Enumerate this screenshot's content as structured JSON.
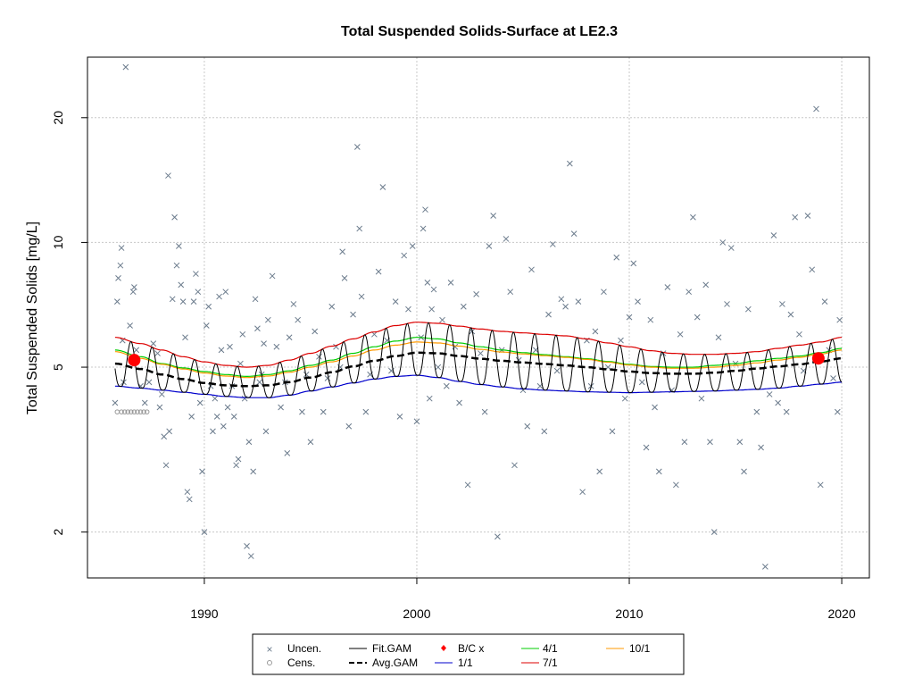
{
  "chart_data": {
    "type": "scatter",
    "title": "Total Suspended Solids-Surface at LE2.3",
    "xlabel": "",
    "ylabel": "Total Suspended Solids [mg/L]",
    "xlim": [
      1984.5,
      2021.3
    ],
    "ylim_log": [
      1.55,
      28
    ],
    "y_scale": "log",
    "xticks": [
      1990,
      2000,
      2010,
      2020
    ],
    "yticks": [
      2,
      5,
      10,
      20
    ],
    "grid": true,
    "legend": {
      "placement": "bottom-center",
      "entries": [
        {
          "label": "Uncen.",
          "kind": "x-point",
          "color": "#6b7b8c"
        },
        {
          "label": "Cens.",
          "kind": "circle-point",
          "color": "#999999"
        },
        {
          "label": "Fit.GAM",
          "kind": "line",
          "color": "#000000"
        },
        {
          "label": "Avg.GAM",
          "kind": "dashed-line",
          "color": "#000000"
        },
        {
          "label": "B/C x",
          "kind": "diamond",
          "color": "#ff0000"
        },
        {
          "label": "1/1",
          "kind": "line",
          "color": "#0000cc"
        },
        {
          "label": "4/1",
          "kind": "line",
          "color": "#00cc00"
        },
        {
          "label": "7/1",
          "kind": "line",
          "color": "#dd0000"
        },
        {
          "label": "10/1",
          "kind": "line",
          "color": "#ff9900"
        }
      ]
    },
    "uncensored_points": [
      [
        1985.8,
        4.1
      ],
      [
        1985.9,
        7.2
      ],
      [
        1985.95,
        8.2
      ],
      [
        1986.05,
        8.8
      ],
      [
        1986.1,
        9.7
      ],
      [
        1986.15,
        5.8
      ],
      [
        1986.2,
        4.6
      ],
      [
        1986.3,
        26.5
      ],
      [
        1986.5,
        6.3
      ],
      [
        1986.65,
        7.6
      ],
      [
        1986.7,
        7.8
      ],
      [
        1986.8,
        5.5
      ],
      [
        1987.0,
        4.5
      ],
      [
        1987.2,
        4.1
      ],
      [
        1987.4,
        4.6
      ],
      [
        1987.6,
        5.7
      ],
      [
        1987.8,
        5.4
      ],
      [
        1987.9,
        4.0
      ],
      [
        1988.0,
        4.3
      ],
      [
        1988.1,
        3.4
      ],
      [
        1988.2,
        2.9
      ],
      [
        1988.3,
        14.5
      ],
      [
        1988.35,
        3.5
      ],
      [
        1988.5,
        7.3
      ],
      [
        1988.6,
        11.5
      ],
      [
        1988.7,
        8.8
      ],
      [
        1988.8,
        9.8
      ],
      [
        1988.9,
        7.9
      ],
      [
        1989.0,
        7.2
      ],
      [
        1989.1,
        5.9
      ],
      [
        1989.2,
        2.5
      ],
      [
        1989.3,
        2.4
      ],
      [
        1989.4,
        3.8
      ],
      [
        1989.5,
        7.2
      ],
      [
        1989.6,
        8.4
      ],
      [
        1989.7,
        7.6
      ],
      [
        1989.8,
        4.1
      ],
      [
        1989.9,
        2.8
      ],
      [
        1990.0,
        2.0
      ],
      [
        1990.1,
        6.3
      ],
      [
        1990.2,
        7.0
      ],
      [
        1990.3,
        4.5
      ],
      [
        1990.4,
        3.5
      ],
      [
        1990.5,
        4.2
      ],
      [
        1990.6,
        3.8
      ],
      [
        1990.7,
        7.4
      ],
      [
        1990.8,
        5.5
      ],
      [
        1990.9,
        3.6
      ],
      [
        1991.0,
        7.6
      ],
      [
        1991.1,
        4.0
      ],
      [
        1991.2,
        5.6
      ],
      [
        1991.3,
        4.5
      ],
      [
        1991.4,
        3.8
      ],
      [
        1991.5,
        2.9
      ],
      [
        1991.6,
        3.0
      ],
      [
        1991.7,
        5.1
      ],
      [
        1991.8,
        6.0
      ],
      [
        1991.9,
        4.2
      ],
      [
        1992.0,
        1.85
      ],
      [
        1992.1,
        3.3
      ],
      [
        1992.2,
        1.75
      ],
      [
        1992.3,
        2.8
      ],
      [
        1992.4,
        7.3
      ],
      [
        1992.5,
        6.2
      ],
      [
        1992.6,
        4.6
      ],
      [
        1992.7,
        4.8
      ],
      [
        1992.8,
        5.7
      ],
      [
        1992.9,
        3.5
      ],
      [
        1993.0,
        6.5
      ],
      [
        1993.2,
        8.3
      ],
      [
        1993.4,
        5.6
      ],
      [
        1993.6,
        4.0
      ],
      [
        1993.8,
        4.6
      ],
      [
        1993.9,
        3.1
      ],
      [
        1994.0,
        5.9
      ],
      [
        1994.2,
        7.1
      ],
      [
        1994.4,
        6.5
      ],
      [
        1994.6,
        3.9
      ],
      [
        1994.8,
        4.8
      ],
      [
        1995.0,
        3.3
      ],
      [
        1995.2,
        6.1
      ],
      [
        1995.4,
        5.3
      ],
      [
        1995.6,
        3.9
      ],
      [
        1995.8,
        4.7
      ],
      [
        1996.0,
        7.0
      ],
      [
        1996.2,
        5.6
      ],
      [
        1996.4,
        5.0
      ],
      [
        1996.5,
        9.5
      ],
      [
        1996.6,
        8.2
      ],
      [
        1996.8,
        3.6
      ],
      [
        1997.0,
        6.7
      ],
      [
        1997.2,
        17.0
      ],
      [
        1997.3,
        10.8
      ],
      [
        1997.4,
        7.4
      ],
      [
        1997.6,
        3.9
      ],
      [
        1997.8,
        4.8
      ],
      [
        1998.0,
        6.0
      ],
      [
        1998.2,
        8.5
      ],
      [
        1998.4,
        13.6
      ],
      [
        1998.6,
        5.8
      ],
      [
        1998.8,
        4.9
      ],
      [
        1999.0,
        7.2
      ],
      [
        1999.2,
        3.8
      ],
      [
        1999.4,
        9.3
      ],
      [
        1999.6,
        6.9
      ],
      [
        1999.8,
        9.8
      ],
      [
        2000.0,
        3.7
      ],
      [
        2000.2,
        5.9
      ],
      [
        2000.3,
        10.8
      ],
      [
        2000.4,
        12.0
      ],
      [
        2000.5,
        8.0
      ],
      [
        2000.6,
        4.2
      ],
      [
        2000.7,
        6.9
      ],
      [
        2000.8,
        7.7
      ],
      [
        2001.0,
        5.0
      ],
      [
        2001.2,
        6.5
      ],
      [
        2001.4,
        4.5
      ],
      [
        2001.6,
        8.0
      ],
      [
        2001.8,
        5.6
      ],
      [
        2002.0,
        4.1
      ],
      [
        2002.2,
        7.0
      ],
      [
        2002.4,
        2.6
      ],
      [
        2002.6,
        6.1
      ],
      [
        2002.8,
        7.5
      ],
      [
        2003.0,
        5.4
      ],
      [
        2003.2,
        3.9
      ],
      [
        2003.4,
        9.8
      ],
      [
        2003.6,
        11.6
      ],
      [
        2003.8,
        1.95
      ],
      [
        2004.0,
        5.5
      ],
      [
        2004.2,
        10.2
      ],
      [
        2004.4,
        7.6
      ],
      [
        2004.6,
        2.9
      ],
      [
        2004.8,
        5.2
      ],
      [
        2005.0,
        4.4
      ],
      [
        2005.2,
        3.6
      ],
      [
        2005.4,
        8.6
      ],
      [
        2005.6,
        5.5
      ],
      [
        2005.8,
        4.5
      ],
      [
        2006.0,
        3.5
      ],
      [
        2006.2,
        6.7
      ],
      [
        2006.4,
        9.9
      ],
      [
        2006.6,
        4.9
      ],
      [
        2006.8,
        7.3
      ],
      [
        2007.0,
        7.0
      ],
      [
        2007.2,
        15.5
      ],
      [
        2007.4,
        10.5
      ],
      [
        2007.6,
        7.2
      ],
      [
        2007.8,
        2.5
      ],
      [
        2008.0,
        5.8
      ],
      [
        2008.2,
        4.5
      ],
      [
        2008.4,
        6.1
      ],
      [
        2008.6,
        2.8
      ],
      [
        2008.8,
        7.6
      ],
      [
        2009.0,
        5.0
      ],
      [
        2009.2,
        3.5
      ],
      [
        2009.4,
        9.2
      ],
      [
        2009.6,
        5.8
      ],
      [
        2009.8,
        4.2
      ],
      [
        2010.0,
        6.6
      ],
      [
        2010.2,
        8.9
      ],
      [
        2010.4,
        7.2
      ],
      [
        2010.6,
        4.6
      ],
      [
        2010.8,
        3.2
      ],
      [
        2011.0,
        6.5
      ],
      [
        2011.2,
        4.0
      ],
      [
        2011.4,
        2.8
      ],
      [
        2011.6,
        5.4
      ],
      [
        2011.8,
        7.8
      ],
      [
        2012.0,
        4.4
      ],
      [
        2012.2,
        2.6
      ],
      [
        2012.4,
        6.0
      ],
      [
        2012.6,
        3.3
      ],
      [
        2012.8,
        7.6
      ],
      [
        2013.0,
        11.5
      ],
      [
        2013.2,
        6.6
      ],
      [
        2013.4,
        4.2
      ],
      [
        2013.6,
        7.9
      ],
      [
        2013.8,
        3.3
      ],
      [
        2014.0,
        2.0
      ],
      [
        2014.2,
        5.9
      ],
      [
        2014.4,
        10.0
      ],
      [
        2014.6,
        7.1
      ],
      [
        2014.8,
        9.7
      ],
      [
        2015.0,
        5.1
      ],
      [
        2015.2,
        3.3
      ],
      [
        2015.4,
        2.8
      ],
      [
        2015.6,
        6.9
      ],
      [
        2016.0,
        3.9
      ],
      [
        2016.2,
        3.2
      ],
      [
        2016.4,
        1.65
      ],
      [
        2016.6,
        4.3
      ],
      [
        2016.8,
        10.4
      ],
      [
        2017.0,
        4.1
      ],
      [
        2017.2,
        7.1
      ],
      [
        2017.4,
        3.9
      ],
      [
        2017.6,
        6.7
      ],
      [
        2017.8,
        11.5
      ],
      [
        2018.0,
        6.0
      ],
      [
        2018.2,
        4.9
      ],
      [
        2018.4,
        11.6
      ],
      [
        2018.6,
        8.6
      ],
      [
        2018.8,
        21.0
      ],
      [
        2019.0,
        2.6
      ],
      [
        2019.2,
        7.2
      ],
      [
        2019.4,
        5.5
      ],
      [
        2019.6,
        4.7
      ],
      [
        2019.8,
        3.9
      ],
      [
        2019.9,
        6.5
      ]
    ],
    "censored_points": [
      [
        1985.9,
        3.9
      ],
      [
        1986.1,
        3.9
      ],
      [
        1986.25,
        3.9
      ],
      [
        1986.4,
        3.9
      ],
      [
        1986.55,
        3.9
      ],
      [
        1986.7,
        3.9
      ],
      [
        1986.85,
        3.9
      ],
      [
        1987.0,
        3.9
      ],
      [
        1987.15,
        3.9
      ],
      [
        1987.3,
        3.9
      ]
    ],
    "series": [
      {
        "name": "1/1",
        "x": [
          1985.8,
          1987,
          1988,
          1989,
          1990,
          1991,
          1992,
          1993,
          1994,
          1995,
          1996,
          1997,
          1998,
          1999,
          2000,
          2001,
          2002,
          2003,
          2004,
          2005,
          2006,
          2007,
          2008,
          2009,
          2010,
          2011,
          2012,
          2013,
          2014,
          2015,
          2016,
          2017,
          2018,
          2019,
          2020
        ],
        "values": [
          4.5,
          4.45,
          4.4,
          4.35,
          4.3,
          4.25,
          4.22,
          4.22,
          4.28,
          4.38,
          4.48,
          4.58,
          4.68,
          4.75,
          4.78,
          4.72,
          4.62,
          4.54,
          4.48,
          4.43,
          4.4,
          4.38,
          4.36,
          4.35,
          4.34,
          4.35,
          4.36,
          4.37,
          4.38,
          4.4,
          4.42,
          4.45,
          4.5,
          4.55,
          4.6
        ]
      },
      {
        "name": "4/1",
        "x": [
          1985.8,
          1987,
          1988,
          1989,
          1990,
          1991,
          1992,
          1993,
          1994,
          1995,
          1996,
          1997,
          1998,
          1999,
          2000,
          2001,
          2002,
          2003,
          2004,
          2005,
          2006,
          2007,
          2008,
          2009,
          2010,
          2011,
          2012,
          2013,
          2014,
          2015,
          2016,
          2017,
          2018,
          2019,
          2020
        ],
        "values": [
          5.5,
          5.3,
          5.1,
          4.98,
          4.88,
          4.8,
          4.75,
          4.8,
          4.9,
          5.05,
          5.2,
          5.4,
          5.6,
          5.78,
          5.9,
          5.85,
          5.72,
          5.6,
          5.5,
          5.42,
          5.36,
          5.3,
          5.24,
          5.16,
          5.08,
          5.02,
          5.0,
          5.0,
          5.05,
          5.1,
          5.18,
          5.25,
          5.32,
          5.42,
          5.55
        ]
      },
      {
        "name": "7/1",
        "x": [
          1985.8,
          1987,
          1988,
          1989,
          1990,
          1991,
          1992,
          1993,
          1994,
          1995,
          1996,
          1997,
          1998,
          1999,
          2000,
          2001,
          2002,
          2003,
          2004,
          2005,
          2006,
          2007,
          2008,
          2009,
          2010,
          2011,
          2012,
          2013,
          2014,
          2015,
          2016,
          2017,
          2018,
          2019,
          2020
        ],
        "values": [
          5.9,
          5.7,
          5.5,
          5.3,
          5.15,
          5.05,
          5.0,
          5.05,
          5.2,
          5.4,
          5.62,
          5.85,
          6.08,
          6.3,
          6.42,
          6.38,
          6.28,
          6.18,
          6.1,
          6.05,
          6.0,
          5.95,
          5.85,
          5.72,
          5.6,
          5.48,
          5.4,
          5.37,
          5.37,
          5.4,
          5.45,
          5.55,
          5.65,
          5.75,
          5.9
        ]
      },
      {
        "name": "10/1",
        "x": [
          1985.8,
          1987,
          1988,
          1989,
          1990,
          1991,
          1992,
          1993,
          1994,
          1995,
          1996,
          1997,
          1998,
          1999,
          2000,
          2001,
          2002,
          2003,
          2004,
          2005,
          2006,
          2007,
          2008,
          2009,
          2010,
          2011,
          2012,
          2013,
          2014,
          2015,
          2016,
          2017,
          2018,
          2019,
          2020
        ],
        "values": [
          5.45,
          5.25,
          5.08,
          4.95,
          4.84,
          4.76,
          4.72,
          4.76,
          4.86,
          5.0,
          5.15,
          5.32,
          5.5,
          5.65,
          5.75,
          5.72,
          5.62,
          5.52,
          5.44,
          5.38,
          5.33,
          5.28,
          5.22,
          5.14,
          5.06,
          5.0,
          4.97,
          4.97,
          5.0,
          5.05,
          5.12,
          5.2,
          5.28,
          5.38,
          5.5
        ]
      },
      {
        "name": "Avg.GAM",
        "x": [
          1985.8,
          1987,
          1988,
          1989,
          1990,
          1991,
          1992,
          1993,
          1994,
          1995,
          1996,
          1997,
          1998,
          1999,
          2000,
          2001,
          2002,
          2003,
          2004,
          2005,
          2006,
          2007,
          2008,
          2009,
          2010,
          2011,
          2012,
          2013,
          2014,
          2015,
          2016,
          2017,
          2018,
          2019,
          2020
        ],
        "values": [
          5.1,
          4.95,
          4.8,
          4.68,
          4.58,
          4.52,
          4.5,
          4.52,
          4.6,
          4.72,
          4.86,
          5.02,
          5.18,
          5.32,
          5.42,
          5.4,
          5.32,
          5.24,
          5.18,
          5.13,
          5.09,
          5.05,
          5.0,
          4.94,
          4.88,
          4.84,
          4.82,
          4.82,
          4.85,
          4.9,
          4.96,
          5.02,
          5.08,
          5.16,
          5.25
        ]
      }
    ],
    "fit_gam": {
      "name": "Fit.GAM",
      "x_range": [
        1985.8,
        2020.0
      ],
      "cycle": "annual",
      "min_month": 0.2,
      "max_month": 0.55
    },
    "bc_points": [
      [
        1986.7,
        5.2
      ],
      [
        2018.9,
        5.25
      ]
    ]
  }
}
